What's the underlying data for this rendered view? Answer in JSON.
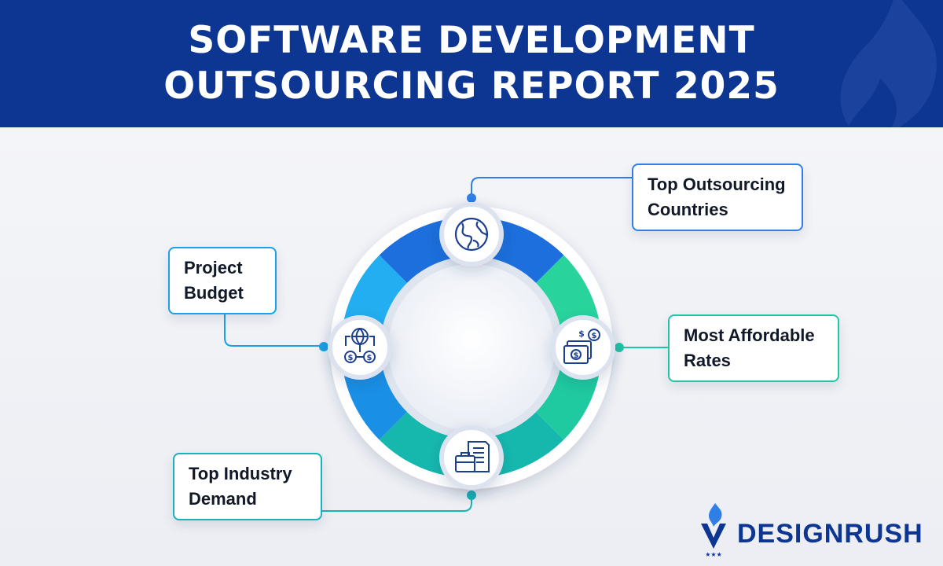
{
  "header": {
    "title_line1": "SOFTWARE DEVELOPMENT",
    "title_line2": "OUTSOURCING REPORT 2025"
  },
  "diagram": {
    "nodes": [
      {
        "id": "countries",
        "line1": "Top Outsourcing",
        "line2": "Countries",
        "icon": "globe-icon",
        "color": "#2f7fe6"
      },
      {
        "id": "budget",
        "line1": "Project",
        "line2": "Budget",
        "icon": "globe-money-network-icon",
        "color": "#1ea0e6"
      },
      {
        "id": "rates",
        "line1": "Most Affordable",
        "line2": "Rates",
        "icon": "dollar-bills-icon",
        "color": "#22c6a4"
      },
      {
        "id": "industry",
        "line1": "Top Industry",
        "line2": "Demand",
        "icon": "briefcase-document-icon",
        "color": "#17b3b7"
      }
    ]
  },
  "brand": {
    "name": "DESIGNRUSH",
    "color": "#0d3693",
    "icon": "flame-shield-logo"
  }
}
